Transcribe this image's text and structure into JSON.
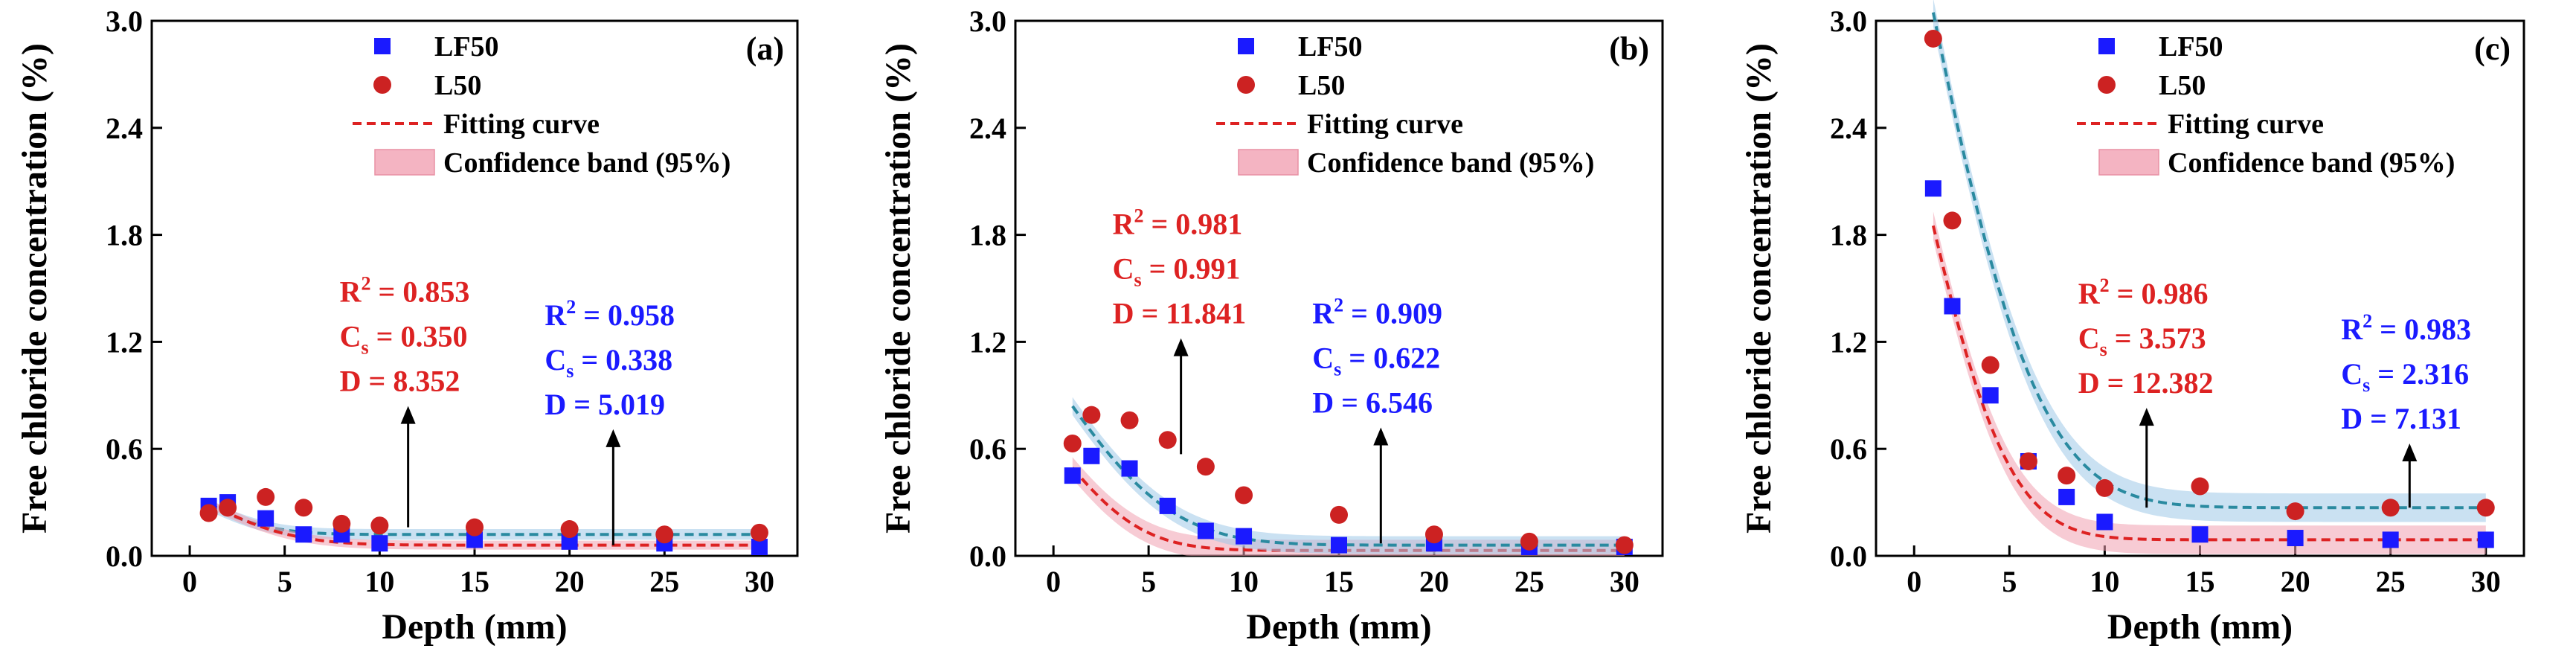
{
  "chart_data": [
    {
      "type": "scatter",
      "panel_label": "(a)",
      "xlabel": "Depth (mm)",
      "ylabel": "Free chloride concentration (%)",
      "xlim": [
        -2,
        32
      ],
      "ylim": [
        0,
        3.0
      ],
      "xticks": [
        0,
        5,
        10,
        15,
        20,
        25,
        30
      ],
      "yticks": [
        0.0,
        0.6,
        1.2,
        1.8,
        2.4,
        3.0
      ],
      "ytick_labels": [
        "0.0",
        "0.6",
        "1.2",
        "1.8",
        "2.4",
        "3.0"
      ],
      "legend": {
        "position": "top",
        "entries": [
          "LF50",
          "L50",
          "Fitting curve",
          "Confidence band (95%)"
        ]
      },
      "series": [
        {
          "name": "LF50",
          "marker": "square",
          "color": "#1a1aff",
          "x": [
            1,
            2,
            4,
            6,
            8,
            10,
            15,
            20,
            25,
            30
          ],
          "y": [
            0.28,
            0.3,
            0.21,
            0.12,
            0.12,
            0.07,
            0.09,
            0.08,
            0.07,
            0.05
          ],
          "fit": {
            "Cs": 0.338,
            "D": 5.019,
            "r": 0.12,
            "band": 0.03,
            "color": "#2a8aa0",
            "band_color": "#9ec8e8"
          }
        },
        {
          "name": "L50",
          "marker": "circle",
          "color": "#cc2222",
          "x": [
            1,
            2,
            4,
            6,
            8,
            10,
            15,
            20,
            25,
            30
          ],
          "y": [
            0.24,
            0.27,
            0.33,
            0.27,
            0.18,
            0.17,
            0.16,
            0.15,
            0.12,
            0.13
          ],
          "fit": {
            "Cs": 0.35,
            "D": 8.352,
            "r": 0.06,
            "band": 0.025,
            "color": "#dd2222",
            "band_color": "#f0a0b0"
          }
        }
      ],
      "annotations": [
        {
          "color": "#dd2222",
          "lines": [
            "R² = 0.853",
            "Cs = 0.350",
            "D = 8.352"
          ],
          "arrow_x": 11.5,
          "arrow_y_from": 0.16,
          "arrow_y_to": 0.84
        },
        {
          "color": "#1a1aff",
          "lines": [
            "R² = 0.958",
            "Cs = 0.338",
            "D = 5.019"
          ],
          "arrow_x": 22.3,
          "arrow_y_from": 0.06,
          "arrow_y_to": 0.71
        }
      ]
    },
    {
      "type": "scatter",
      "panel_label": "(b)",
      "xlabel": "Depth (mm)",
      "ylabel": "Free chloride concentration (%)",
      "xlim": [
        -2,
        32
      ],
      "ylim": [
        0,
        3.0
      ],
      "xticks": [
        0,
        5,
        10,
        15,
        20,
        25,
        30
      ],
      "yticks": [
        0.0,
        0.6,
        1.2,
        1.8,
        2.4,
        3.0
      ],
      "ytick_labels": [
        "0.0",
        "0.6",
        "1.2",
        "1.8",
        "2.4",
        "3.0"
      ],
      "legend": {
        "position": "top",
        "entries": [
          "LF50",
          "L50",
          "Fitting curve",
          "Confidence band (95%)"
        ]
      },
      "series": [
        {
          "name": "LF50",
          "marker": "square",
          "color": "#1a1aff",
          "x": [
            1,
            2,
            4,
            6,
            8,
            10,
            15,
            20,
            25,
            30
          ],
          "y": [
            0.45,
            0.56,
            0.49,
            0.28,
            0.14,
            0.11,
            0.06,
            0.07,
            0.05,
            0.05
          ],
          "fit": {
            "Cs": 0.622,
            "D": 6.546,
            "r": 0.03,
            "band": 0.06,
            "color": "#dd2222",
            "band_color": "#f0a0b0"
          }
        },
        {
          "name": "L50",
          "marker": "circle",
          "color": "#cc2222",
          "x": [
            1,
            2,
            4,
            6,
            8,
            10,
            15,
            20,
            25,
            30
          ],
          "y": [
            0.63,
            0.79,
            0.76,
            0.65,
            0.5,
            0.34,
            0.23,
            0.12,
            0.08,
            0.06
          ],
          "fit": {
            "Cs": 0.991,
            "D": 11.841,
            "r": 0.06,
            "band": 0.05,
            "color": "#2a8aa0",
            "band_color": "#9ec8e8"
          }
        }
      ],
      "annotations": [
        {
          "color": "#dd2222",
          "lines": [
            "R² = 0.981",
            "Cs = 0.991",
            "D = 11.841"
          ],
          "arrow_x": 6.7,
          "arrow_y_from": 0.57,
          "arrow_y_to": 1.22
        },
        {
          "color": "#1a1aff",
          "lines": [
            "R² = 0.909",
            "Cs = 0.622",
            "D = 6.546"
          ],
          "arrow_x": 17.2,
          "arrow_y_from": 0.07,
          "arrow_y_to": 0.72
        }
      ]
    },
    {
      "type": "scatter",
      "panel_label": "(c)",
      "xlabel": "Depth (mm)",
      "ylabel": "Free chloride concentration (%)",
      "xlim": [
        -2,
        32
      ],
      "ylim": [
        0,
        3.0
      ],
      "xticks": [
        0,
        5,
        10,
        15,
        20,
        25,
        30
      ],
      "yticks": [
        0.0,
        0.6,
        1.2,
        1.8,
        2.4,
        3.0
      ],
      "ytick_labels": [
        "0.0",
        "0.6",
        "1.2",
        "1.8",
        "2.4",
        "3.0"
      ],
      "legend": {
        "position": "top",
        "entries": [
          "LF50",
          "L50",
          "Fitting curve",
          "Confidence band (95%)"
        ]
      },
      "series": [
        {
          "name": "LF50",
          "marker": "square",
          "color": "#1a1aff",
          "x": [
            1,
            2,
            4,
            6,
            8,
            10,
            15,
            20,
            25,
            30
          ],
          "y": [
            2.06,
            1.4,
            0.9,
            0.53,
            0.33,
            0.19,
            0.12,
            0.1,
            0.09,
            0.09
          ],
          "fit": {
            "Cs": 2.316,
            "D": 7.131,
            "r": 0.09,
            "band": 0.08,
            "color": "#dd2222",
            "band_color": "#f0a0b0"
          }
        },
        {
          "name": "L50",
          "marker": "circle",
          "color": "#cc2222",
          "x": [
            1,
            2,
            4,
            6,
            8,
            10,
            15,
            20,
            25,
            30
          ],
          "y": [
            2.9,
            1.88,
            1.07,
            0.53,
            0.45,
            0.38,
            0.39,
            0.25,
            0.27,
            0.27
          ],
          "fit": {
            "Cs": 3.573,
            "D": 12.382,
            "r": 0.27,
            "band": 0.08,
            "color": "#2a8aa0",
            "band_color": "#9ec8e8"
          }
        }
      ],
      "annotations": [
        {
          "color": "#dd2222",
          "lines": [
            "R² = 0.986",
            "Cs = 3.573",
            "D = 12.382"
          ],
          "arrow_x": 12.2,
          "arrow_y_from": 0.27,
          "arrow_y_to": 0.83
        },
        {
          "color": "#1a1aff",
          "lines": [
            "R² = 0.983",
            "Cs = 2.316",
            "D = 7.131"
          ],
          "arrow_x": 26.0,
          "arrow_y_from": 0.27,
          "arrow_y_to": 0.63
        }
      ]
    }
  ]
}
